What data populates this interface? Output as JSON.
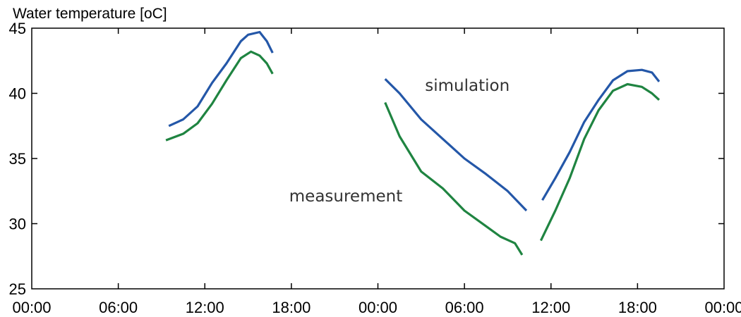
{
  "chart_data": {
    "type": "line",
    "title": "",
    "xlabel": "",
    "ylabel": "Water temperature [oC]",
    "xlim": [
      0,
      48
    ],
    "ylim": [
      25,
      45
    ],
    "x_unit": "hours",
    "x_tick_values": [
      0,
      6,
      12,
      18,
      24,
      30,
      36,
      42,
      48
    ],
    "x_tick_labels": [
      "00:00",
      "06:00",
      "12:00",
      "18:00",
      "00:00",
      "06:00",
      "12:00",
      "18:00",
      "00:00"
    ],
    "y_ticks": [
      25,
      30,
      35,
      40,
      45
    ],
    "grid": false,
    "legend": "none",
    "series": [
      {
        "name": "simulation",
        "color": "#2457a8",
        "segments": [
          [
            [
              9.5,
              37.5
            ],
            [
              10.5,
              38.0
            ],
            [
              11.5,
              39.0
            ],
            [
              12.5,
              40.8
            ],
            [
              13.5,
              42.3
            ],
            [
              14.5,
              44.0
            ],
            [
              15.0,
              44.5
            ],
            [
              15.8,
              44.7
            ],
            [
              16.3,
              44.0
            ],
            [
              16.7,
              43.1
            ]
          ],
          [
            [
              24.5,
              41.1
            ],
            [
              25.5,
              40.0
            ],
            [
              27,
              38.0
            ],
            [
              28.5,
              36.5
            ],
            [
              30,
              35.0
            ],
            [
              31.5,
              33.8
            ],
            [
              33,
              32.5
            ],
            [
              34.3,
              31.0
            ]
          ],
          [
            [
              35.4,
              31.8
            ],
            [
              36.3,
              33.5
            ],
            [
              37.3,
              35.5
            ],
            [
              38.3,
              37.8
            ],
            [
              39.3,
              39.5
            ],
            [
              40.3,
              41.0
            ],
            [
              41.3,
              41.7
            ],
            [
              42.3,
              41.8
            ],
            [
              43.0,
              41.6
            ],
            [
              43.5,
              40.9
            ]
          ]
        ]
      },
      {
        "name": "measurement",
        "color": "#1f8441",
        "segments": [
          [
            [
              9.3,
              36.4
            ],
            [
              10.5,
              36.9
            ],
            [
              11.5,
              37.7
            ],
            [
              12.5,
              39.2
            ],
            [
              13.5,
              41.0
            ],
            [
              14.5,
              42.7
            ],
            [
              15.2,
              43.2
            ],
            [
              15.8,
              42.9
            ],
            [
              16.3,
              42.3
            ],
            [
              16.7,
              41.5
            ]
          ],
          [
            [
              24.5,
              39.3
            ],
            [
              25.5,
              36.7
            ],
            [
              27,
              34.0
            ],
            [
              28.5,
              32.7
            ],
            [
              30,
              31.0
            ],
            [
              31.5,
              29.8
            ],
            [
              32.5,
              29.0
            ],
            [
              33.5,
              28.5
            ],
            [
              34.0,
              27.6
            ]
          ],
          [
            [
              35.3,
              28.7
            ],
            [
              36.3,
              31.0
            ],
            [
              37.3,
              33.5
            ],
            [
              38.3,
              36.5
            ],
            [
              39.3,
              38.7
            ],
            [
              40.3,
              40.2
            ],
            [
              41.3,
              40.7
            ],
            [
              42.3,
              40.5
            ],
            [
              43.0,
              40.0
            ],
            [
              43.5,
              39.5
            ]
          ]
        ]
      }
    ],
    "annotations": [
      {
        "text": "simulation",
        "x": 30.2,
        "y": 40.2,
        "anchor": "middle"
      },
      {
        "text": "measurement",
        "x": 25.7,
        "y": 31.7,
        "anchor": "end"
      }
    ]
  }
}
